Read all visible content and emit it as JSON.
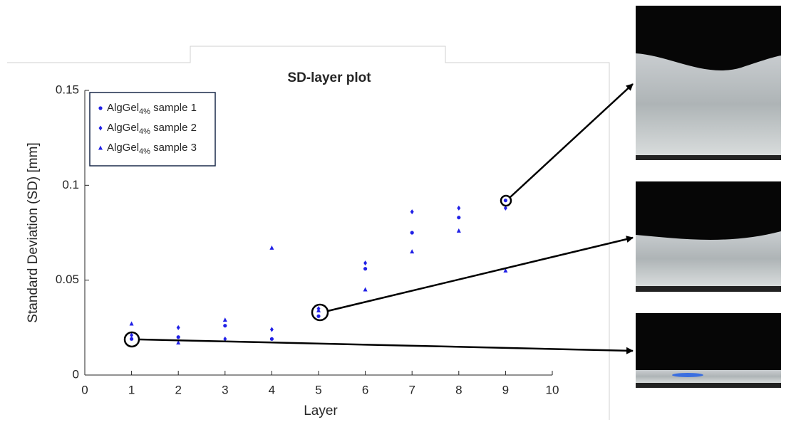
{
  "chart_data": {
    "type": "scatter",
    "title": "SD-layer plot",
    "x_label": "Layer",
    "y_label": "Standard Deviation (SD) [mm]",
    "x": [
      1,
      2,
      3,
      4,
      5,
      6,
      7,
      8,
      9
    ],
    "series": [
      {
        "name": "AlgGel4% sample 1",
        "name_subscript": "4%",
        "marker": "circle",
        "color": "#2020e6",
        "values": [
          0.019,
          0.02,
          0.026,
          0.019,
          0.031,
          0.056,
          0.075,
          0.083,
          0.092
        ]
      },
      {
        "name": "AlgGel4% sample 2",
        "name_subscript": "4%",
        "marker": "diamond",
        "color": "#2020e6",
        "values": [
          0.021,
          0.025,
          0.019,
          0.024,
          0.035,
          0.059,
          0.086,
          0.088,
          0.088
        ]
      },
      {
        "name": "AlgGel4% sample 3",
        "name_subscript": "4%",
        "marker": "triangle",
        "color": "#2020e6",
        "values": [
          0.027,
          0.017,
          0.029,
          0.067,
          0.034,
          0.045,
          0.065,
          0.076,
          0.055
        ]
      }
    ],
    "xlim": [
      0,
      10
    ],
    "xticks": [
      0,
      1,
      2,
      3,
      4,
      5,
      6,
      7,
      8,
      9,
      10
    ],
    "ylim": [
      0,
      0.15
    ],
    "yticks": [
      0,
      0.05,
      0.1,
      0.15
    ],
    "grid": false,
    "legend": "upper left"
  }
}
